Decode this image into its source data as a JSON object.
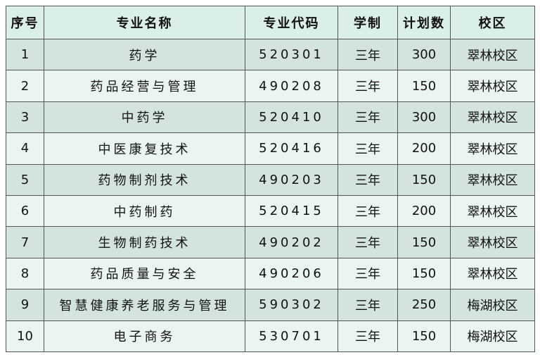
{
  "table": {
    "header": [
      "序号",
      "专业名称",
      "专业代码",
      "学制",
      "计划数",
      "校区"
    ],
    "rows": [
      [
        1,
        "药学",
        "520301",
        "三年",
        300,
        "翠林校区"
      ],
      [
        2,
        "药品经营与管理",
        "490208",
        "三年",
        150,
        "翠林校区"
      ],
      [
        3,
        "中药学",
        "520410",
        "三年",
        300,
        "翠林校区"
      ],
      [
        4,
        "中医康复技术",
        "520416",
        "三年",
        200,
        "翠林校区"
      ],
      [
        5,
        "药物制剂技术",
        "490203",
        "三年",
        150,
        "翠林校区"
      ],
      [
        6,
        "中药制药",
        "520415",
        "三年",
        200,
        "翠林校区"
      ],
      [
        7,
        "生物制药技术",
        "490202",
        "三年",
        150,
        "翠林校区"
      ],
      [
        8,
        "药品质量与安全",
        "490206",
        "三年",
        150,
        "翠林校区"
      ],
      [
        9,
        "智慧健康养老服务与管理",
        "590302",
        "三年",
        250,
        "梅湖校区"
      ],
      [
        10,
        "电子商务",
        "530701",
        "三年",
        150,
        "梅湖校区"
      ]
    ]
  }
}
